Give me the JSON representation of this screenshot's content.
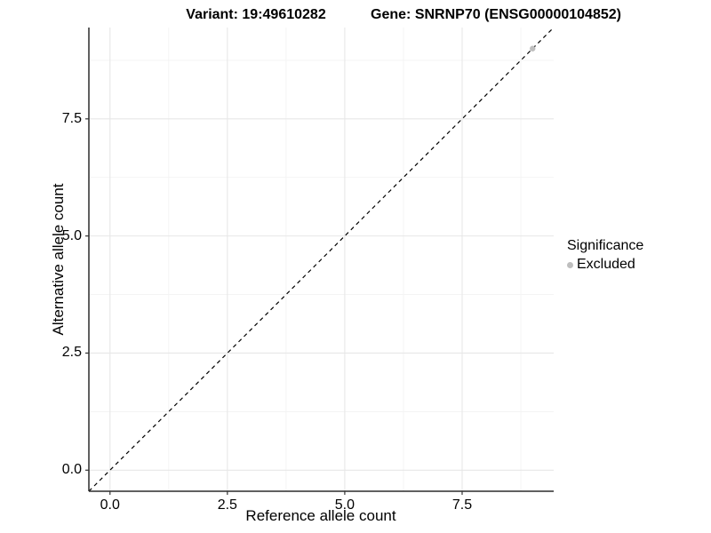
{
  "titles": {
    "variant": "Variant: 19:49610282",
    "gene": "Gene: SNRNP70 (ENSG00000104852)"
  },
  "chart_data": {
    "type": "scatter",
    "title": "Variant: 19:49610282   Gene: SNRNP70 (ENSG00000104852)",
    "xlabel": "Reference allele count",
    "ylabel": "Alternative allele count",
    "xlim": [
      -0.45,
      9.45
    ],
    "ylim": [
      -0.45,
      9.45
    ],
    "x_ticks": [
      0.0,
      2.5,
      5.0,
      7.5
    ],
    "y_ticks": [
      0.0,
      2.5,
      5.0,
      7.5
    ],
    "x_tick_labels": [
      "0.0",
      "2.5",
      "5.0",
      "7.5"
    ],
    "y_tick_labels": [
      "0.0",
      "2.5",
      "5.0",
      "7.5"
    ],
    "x_minor_ticks": [
      1.25,
      3.75,
      6.25,
      8.75
    ],
    "y_minor_ticks": [
      1.25,
      3.75,
      6.25,
      8.75
    ],
    "grid": true,
    "series": [
      {
        "name": "Excluded",
        "color": "#bebebe",
        "points": [
          {
            "x": 9,
            "y": 9
          }
        ]
      }
    ],
    "reference_line": {
      "description": "identity line y = x",
      "style": "dashed",
      "color": "#000000",
      "from": [
        -0.45,
        -0.45
      ],
      "to": [
        9.45,
        9.45
      ]
    },
    "legend": {
      "title": "Significance",
      "position": "right",
      "items": [
        {
          "label": "Excluded",
          "color": "#bebebe"
        }
      ]
    },
    "colors": {
      "panel_background": "#ffffff",
      "grid_major": "#e7e7e7",
      "grid_minor": "#f3f3f3",
      "axis_line": "#2b2b2b",
      "tick_mark": "#333333",
      "point": "#bebebe"
    }
  }
}
